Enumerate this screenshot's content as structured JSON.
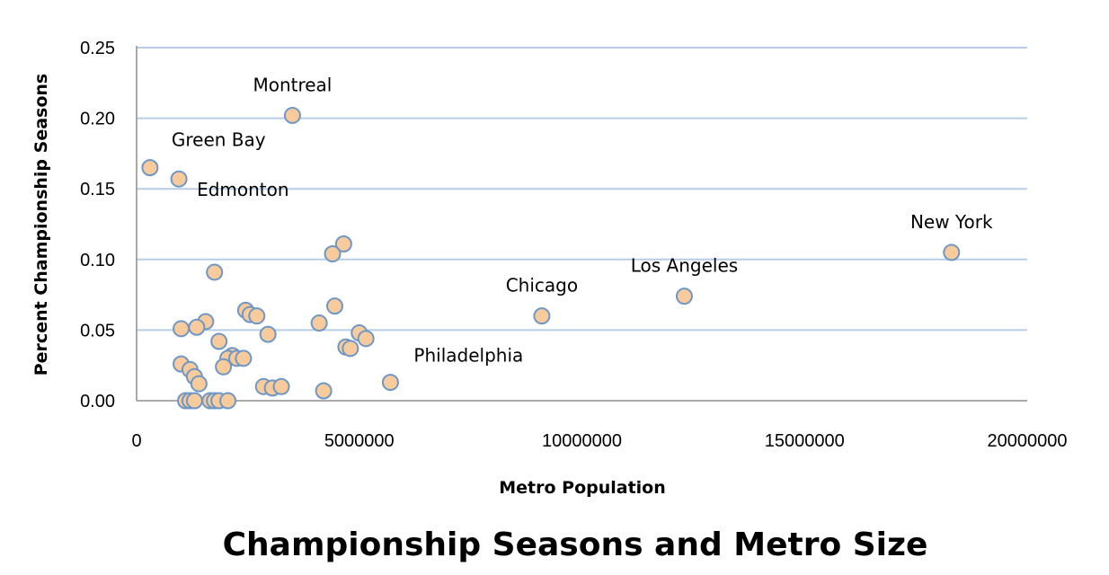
{
  "chart_data": {
    "type": "scatter",
    "title": "Championship Seasons and Metro Size",
    "xlabel": "Metro Population",
    "ylabel": "Percent  Championship Seasons",
    "xlim": [
      0,
      20000000
    ],
    "ylim": [
      0,
      0.25
    ],
    "x_ticks": [
      "0",
      "5000000",
      "10000000",
      "15000000",
      "20000000"
    ],
    "y_ticks": [
      "0.00",
      "0.05",
      "0.10",
      "0.15",
      "0.20",
      "0.25"
    ],
    "grid": "horizontal",
    "marker_fill": "#f8cb9c",
    "marker_edge": "#6f97c6",
    "grid_color": "#b7cde6",
    "points": [
      {
        "x": 300000,
        "y": 0.165,
        "label": "Green Bay"
      },
      {
        "x": 950000,
        "y": 0.157,
        "label": "Edmonton"
      },
      {
        "x": 3500000,
        "y": 0.202,
        "label": "Montreal"
      },
      {
        "x": 18300000,
        "y": 0.105,
        "label": "New York"
      },
      {
        "x": 12300000,
        "y": 0.074,
        "label": "Los Angeles"
      },
      {
        "x": 9100000,
        "y": 0.06,
        "label": "Chicago"
      },
      {
        "x": 5700000,
        "y": 0.013,
        "label": "Philadelphia"
      },
      {
        "x": 4650000,
        "y": 0.111
      },
      {
        "x": 4400000,
        "y": 0.104
      },
      {
        "x": 4450000,
        "y": 0.067
      },
      {
        "x": 4100000,
        "y": 0.055
      },
      {
        "x": 5000000,
        "y": 0.048
      },
      {
        "x": 5150000,
        "y": 0.044
      },
      {
        "x": 4700000,
        "y": 0.038
      },
      {
        "x": 4800000,
        "y": 0.037
      },
      {
        "x": 4200000,
        "y": 0.007
      },
      {
        "x": 1750000,
        "y": 0.091
      },
      {
        "x": 2450000,
        "y": 0.064
      },
      {
        "x": 2550000,
        "y": 0.061
      },
      {
        "x": 2700000,
        "y": 0.06
      },
      {
        "x": 2950000,
        "y": 0.047
      },
      {
        "x": 1550000,
        "y": 0.056
      },
      {
        "x": 1350000,
        "y": 0.052
      },
      {
        "x": 1000000,
        "y": 0.051
      },
      {
        "x": 1850000,
        "y": 0.042
      },
      {
        "x": 2150000,
        "y": 0.032
      },
      {
        "x": 2050000,
        "y": 0.03
      },
      {
        "x": 2250000,
        "y": 0.03
      },
      {
        "x": 2400000,
        "y": 0.03
      },
      {
        "x": 1950000,
        "y": 0.024
      },
      {
        "x": 1000000,
        "y": 0.026
      },
      {
        "x": 1200000,
        "y": 0.022
      },
      {
        "x": 1300000,
        "y": 0.017
      },
      {
        "x": 1400000,
        "y": 0.012
      },
      {
        "x": 2850000,
        "y": 0.01
      },
      {
        "x": 3050000,
        "y": 0.009
      },
      {
        "x": 3250000,
        "y": 0.01
      },
      {
        "x": 1100000,
        "y": 0.0
      },
      {
        "x": 1200000,
        "y": 0.0
      },
      {
        "x": 1300000,
        "y": 0.0
      },
      {
        "x": 1650000,
        "y": 0.0
      },
      {
        "x": 1750000,
        "y": 0.0
      },
      {
        "x": 1850000,
        "y": 0.0
      },
      {
        "x": 2050000,
        "y": 0.0
      }
    ]
  }
}
